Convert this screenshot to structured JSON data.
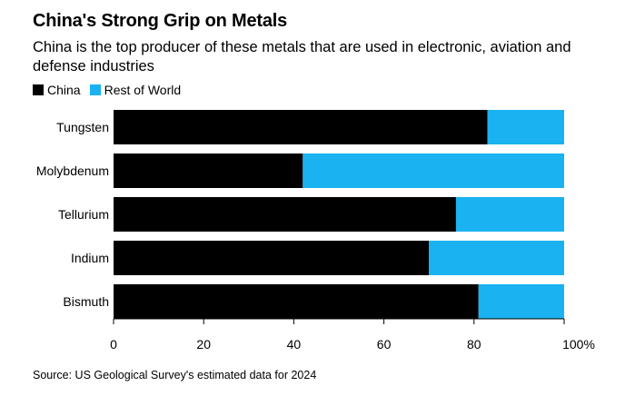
{
  "header": {
    "title": "China's Strong Grip on Metals",
    "subtitle": "China is the top producer of these metals that are used in electronic, aviation and defense industries"
  },
  "legend": {
    "items": [
      {
        "label": "China",
        "color": "#000000"
      },
      {
        "label": "Rest of World",
        "color": "#1AB2F0"
      }
    ]
  },
  "chart_data": {
    "type": "bar",
    "orientation": "horizontal",
    "stacked": true,
    "categories": [
      "Tungsten",
      "Molybdenum",
      "Tellurium",
      "Indium",
      "Bismuth"
    ],
    "series": [
      {
        "name": "China",
        "values": [
          83,
          42,
          76,
          70,
          81
        ],
        "color": "#000000"
      },
      {
        "name": "Rest of World",
        "values": [
          17,
          58,
          24,
          30,
          19
        ],
        "color": "#1AB2F0"
      }
    ],
    "xlim": [
      0,
      100
    ],
    "x_ticks": [
      "0",
      "20",
      "40",
      "60",
      "80",
      "100%"
    ],
    "grid": false,
    "legend_position": "top-left"
  },
  "footer": {
    "source": "Source: US Geological Survey's estimated data for 2024"
  }
}
